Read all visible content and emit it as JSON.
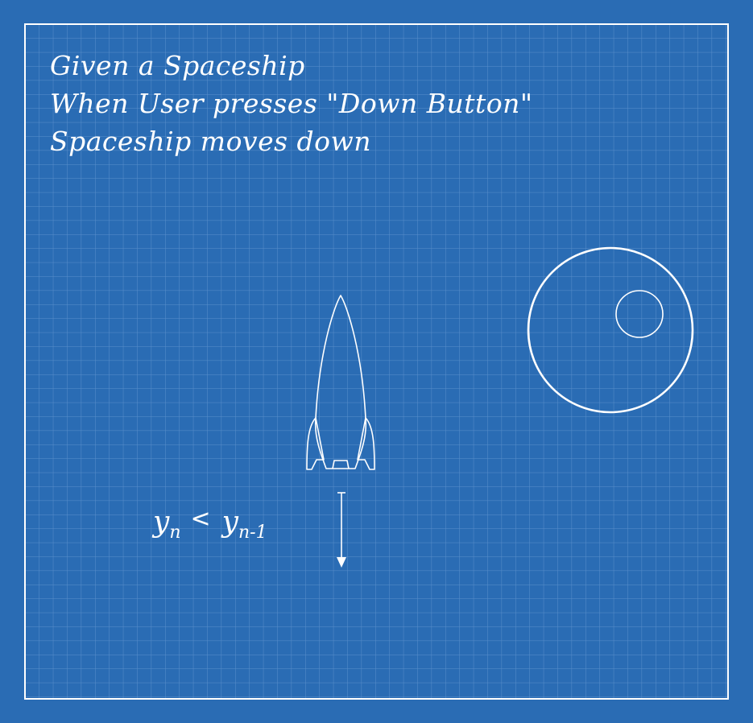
{
  "story": {
    "lines": [
      "Given a Spaceship",
      "When User presses \"Down Button\"",
      "Spaceship moves down"
    ]
  },
  "formula": {
    "lhs_var": "y",
    "lhs_sub": "n",
    "operator": "<",
    "rhs_var": "y",
    "rhs_sub": "n-1"
  },
  "icons": [
    "rocket-icon",
    "planet-icon",
    "down-arrow-icon"
  ],
  "colors": {
    "background": "#2a6cb4",
    "grid_line": "#5a8fcb",
    "ink": "#ffffff"
  }
}
